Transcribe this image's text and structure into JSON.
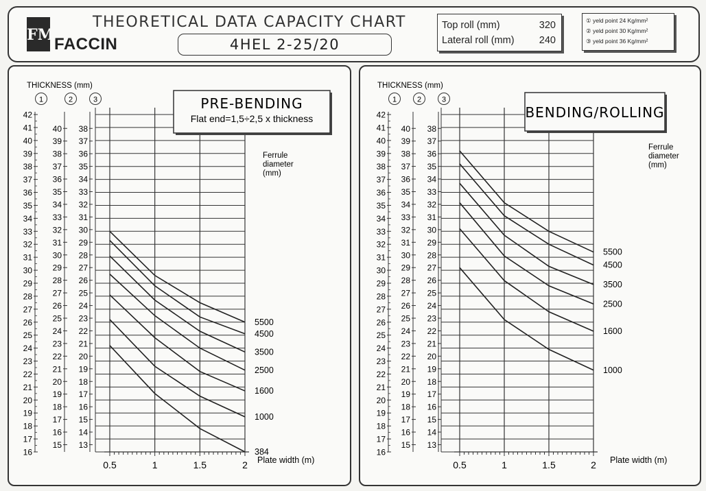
{
  "header": {
    "title": "THEORETICAL DATA CAPACITY CHART",
    "model": "4HEL 2-25/20",
    "brand": "FACCIN",
    "logo_text": "FM",
    "top_roll_label": "Top roll (mm)",
    "top_roll_value": "320",
    "lateral_roll_label": "Lateral roll (mm)",
    "lateral_roll_value": "240",
    "yield_lines": [
      "① yeld point 24 Kg/mm²",
      "② yeld point 30 Kg/mm²",
      "③ yeld point 36 Kg/mm²"
    ]
  },
  "chart_data": [
    {
      "type": "line",
      "title": "PRE-BENDING",
      "subtitle": "Flat end=1,5÷2,5 x thickness",
      "ylabel": "THICKNESS (mm)",
      "xlabel": "Plate width (m)",
      "legend_title": "Ferrule diameter (mm)",
      "scale_markers": [
        "1",
        "2",
        "3"
      ],
      "ylim": [
        16,
        42
      ],
      "xlim": [
        0.5,
        2
      ],
      "x_ticks": [
        "0.5",
        "1",
        "1.5",
        "2"
      ],
      "scale1_ticks": [
        16,
        17,
        18,
        19,
        20,
        21,
        22,
        23,
        24,
        25,
        26,
        27,
        28,
        29,
        30,
        31,
        32,
        33,
        34,
        35,
        36,
        37,
        38,
        39,
        40,
        41,
        42
      ],
      "scale2_ticks": [
        15,
        16,
        17,
        18,
        19,
        20,
        21,
        22,
        23,
        24,
        25,
        26,
        27,
        28,
        29,
        30,
        31,
        32,
        33,
        34,
        35,
        36,
        37,
        38,
        39,
        40
      ],
      "scale3_ticks": [
        13,
        14,
        15,
        16,
        17,
        18,
        19,
        20,
        21,
        22,
        23,
        24,
        25,
        26,
        27,
        28,
        29,
        30,
        31,
        32,
        33,
        34,
        35,
        36,
        37,
        38
      ],
      "x": [
        0.5,
        1,
        1.5,
        2
      ],
      "series": [
        {
          "name": "5500",
          "values": [
            33,
            29.6,
            27.5,
            26
          ]
        },
        {
          "name": "4500",
          "values": [
            32.3,
            28.8,
            26.4,
            25.1
          ]
        },
        {
          "name": "3500",
          "values": [
            31.1,
            27.7,
            25.3,
            23.7
          ]
        },
        {
          "name": "2500",
          "values": [
            29.7,
            26.5,
            24,
            22.3
          ]
        },
        {
          "name": "1600",
          "values": [
            28.1,
            24.8,
            22.2,
            20.7
          ]
        },
        {
          "name": "1000",
          "values": [
            26.2,
            22.6,
            20.3,
            18.7
          ]
        },
        {
          "name": "384",
          "values": [
            24.2,
            20.5,
            17.8,
            16
          ]
        }
      ]
    },
    {
      "type": "line",
      "title": "BENDING/ROLLING",
      "subtitle": "",
      "ylabel": "THICKNESS (mm)",
      "xlabel": "Plate width (m)",
      "legend_title": "Ferrule diameter (mm)",
      "scale_markers": [
        "1",
        "2",
        "3"
      ],
      "ylim": [
        16,
        42
      ],
      "xlim": [
        0.5,
        2
      ],
      "x_ticks": [
        "0.5",
        "1",
        "1.5",
        "2"
      ],
      "scale1_ticks": [
        16,
        17,
        18,
        19,
        20,
        21,
        22,
        23,
        24,
        25,
        26,
        27,
        28,
        29,
        30,
        31,
        32,
        33,
        34,
        35,
        36,
        37,
        38,
        39,
        40,
        41,
        42
      ],
      "scale2_ticks": [
        15,
        16,
        17,
        18,
        19,
        20,
        21,
        22,
        23,
        24,
        25,
        26,
        27,
        28,
        29,
        30,
        31,
        32,
        33,
        34,
        35,
        36,
        37,
        38,
        39,
        40
      ],
      "scale3_ticks": [
        13,
        14,
        15,
        16,
        17,
        18,
        19,
        20,
        21,
        22,
        23,
        24,
        25,
        26,
        27,
        28,
        29,
        30,
        31,
        32,
        33,
        34,
        35,
        36,
        37,
        38
      ],
      "x": [
        0.5,
        1,
        1.5,
        2
      ],
      "series": [
        {
          "name": "5500",
          "values": [
            39.2,
            35.2,
            33,
            31.4
          ]
        },
        {
          "name": "4500",
          "values": [
            38.2,
            34.2,
            32,
            30.4
          ]
        },
        {
          "name": "3500",
          "values": [
            36.7,
            32.7,
            30.3,
            28.9
          ]
        },
        {
          "name": "2500",
          "values": [
            35.2,
            31.1,
            28.8,
            27.4
          ]
        },
        {
          "name": "1600",
          "values": [
            33.2,
            29.2,
            26.8,
            25.3
          ]
        },
        {
          "name": "1000",
          "values": [
            30.2,
            26.2,
            23.9,
            22.3
          ]
        }
      ]
    }
  ]
}
